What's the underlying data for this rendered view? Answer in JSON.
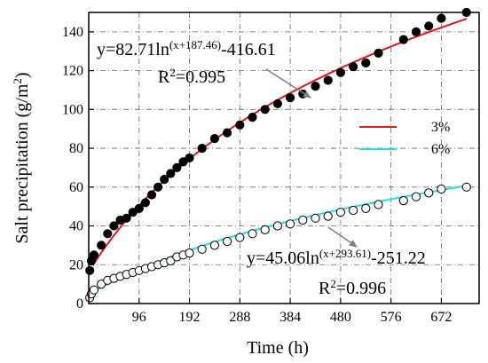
{
  "chart_data": {
    "type": "scatter",
    "xlabel": "Time (h)",
    "ylabel": "Salt precipitation (g/m",
    "ylabel_sup": "2",
    "ylabel_end": ")",
    "xlim": [
      0,
      744
    ],
    "ylim": [
      0,
      150
    ],
    "xticks": [
      96,
      192,
      288,
      384,
      480,
      576,
      672
    ],
    "yticks": [
      0,
      20,
      40,
      60,
      80,
      100,
      120,
      140
    ],
    "grid": true,
    "legend_position": "center-right",
    "series": [
      {
        "name": "3%",
        "marker": "filled-circle",
        "line_color": "#e8141b",
        "points": [
          [
            2,
            17
          ],
          [
            5,
            22
          ],
          [
            10,
            25
          ],
          [
            24,
            30
          ],
          [
            36,
            36
          ],
          [
            48,
            40
          ],
          [
            60,
            43
          ],
          [
            72,
            44
          ],
          [
            84,
            47
          ],
          [
            96,
            49
          ],
          [
            108,
            52
          ],
          [
            120,
            56
          ],
          [
            132,
            60
          ],
          [
            144,
            64
          ],
          [
            156,
            67
          ],
          [
            168,
            70
          ],
          [
            180,
            73
          ],
          [
            192,
            75
          ],
          [
            216,
            80
          ],
          [
            240,
            85
          ],
          [
            264,
            88
          ],
          [
            288,
            92
          ],
          [
            312,
            96
          ],
          [
            336,
            100
          ],
          [
            360,
            103
          ],
          [
            384,
            106
          ],
          [
            408,
            108
          ],
          [
            432,
            112
          ],
          [
            456,
            115
          ],
          [
            480,
            119
          ],
          [
            504,
            122
          ],
          [
            528,
            124
          ],
          [
            552,
            129
          ],
          [
            600,
            136
          ],
          [
            624,
            140
          ],
          [
            648,
            143
          ],
          [
            672,
            147
          ],
          [
            720,
            150
          ]
        ],
        "fit": {
          "a": 82.71,
          "b": 187.46,
          "c": -416.61
        },
        "equation_main": "y=82.71ln",
        "equation_sup": "(x+187.46)",
        "equation_end": "-416.61",
        "r2_label": "R",
        "r2_sup": "2",
        "r2_value": "=0.995"
      },
      {
        "name": "6%",
        "marker": "open-circle",
        "line_color": "#1fe0e8",
        "points": [
          [
            2,
            3
          ],
          [
            5,
            5
          ],
          [
            10,
            7
          ],
          [
            24,
            10
          ],
          [
            36,
            12
          ],
          [
            48,
            13
          ],
          [
            60,
            14
          ],
          [
            72,
            15
          ],
          [
            84,
            16
          ],
          [
            96,
            17
          ],
          [
            108,
            18
          ],
          [
            120,
            19
          ],
          [
            132,
            20
          ],
          [
            144,
            21
          ],
          [
            156,
            22
          ],
          [
            168,
            24
          ],
          [
            180,
            25
          ],
          [
            192,
            26
          ],
          [
            216,
            28
          ],
          [
            240,
            30
          ],
          [
            264,
            32
          ],
          [
            288,
            34
          ],
          [
            312,
            36
          ],
          [
            336,
            38
          ],
          [
            360,
            40
          ],
          [
            384,
            41
          ],
          [
            408,
            43
          ],
          [
            432,
            44
          ],
          [
            456,
            45
          ],
          [
            480,
            47
          ],
          [
            504,
            48
          ],
          [
            528,
            49
          ],
          [
            552,
            51
          ],
          [
            600,
            53
          ],
          [
            624,
            55
          ],
          [
            648,
            57
          ],
          [
            672,
            59
          ],
          [
            720,
            60
          ]
        ],
        "fit": {
          "a": 45.06,
          "b": 293.61,
          "c": -251.22
        },
        "equation_main": "y=45.06ln",
        "equation_sup": "(x+293.61)",
        "equation_end": "-251.22",
        "r2_label": "R",
        "r2_sup": "2",
        "r2_value": "=0.996"
      }
    ]
  }
}
